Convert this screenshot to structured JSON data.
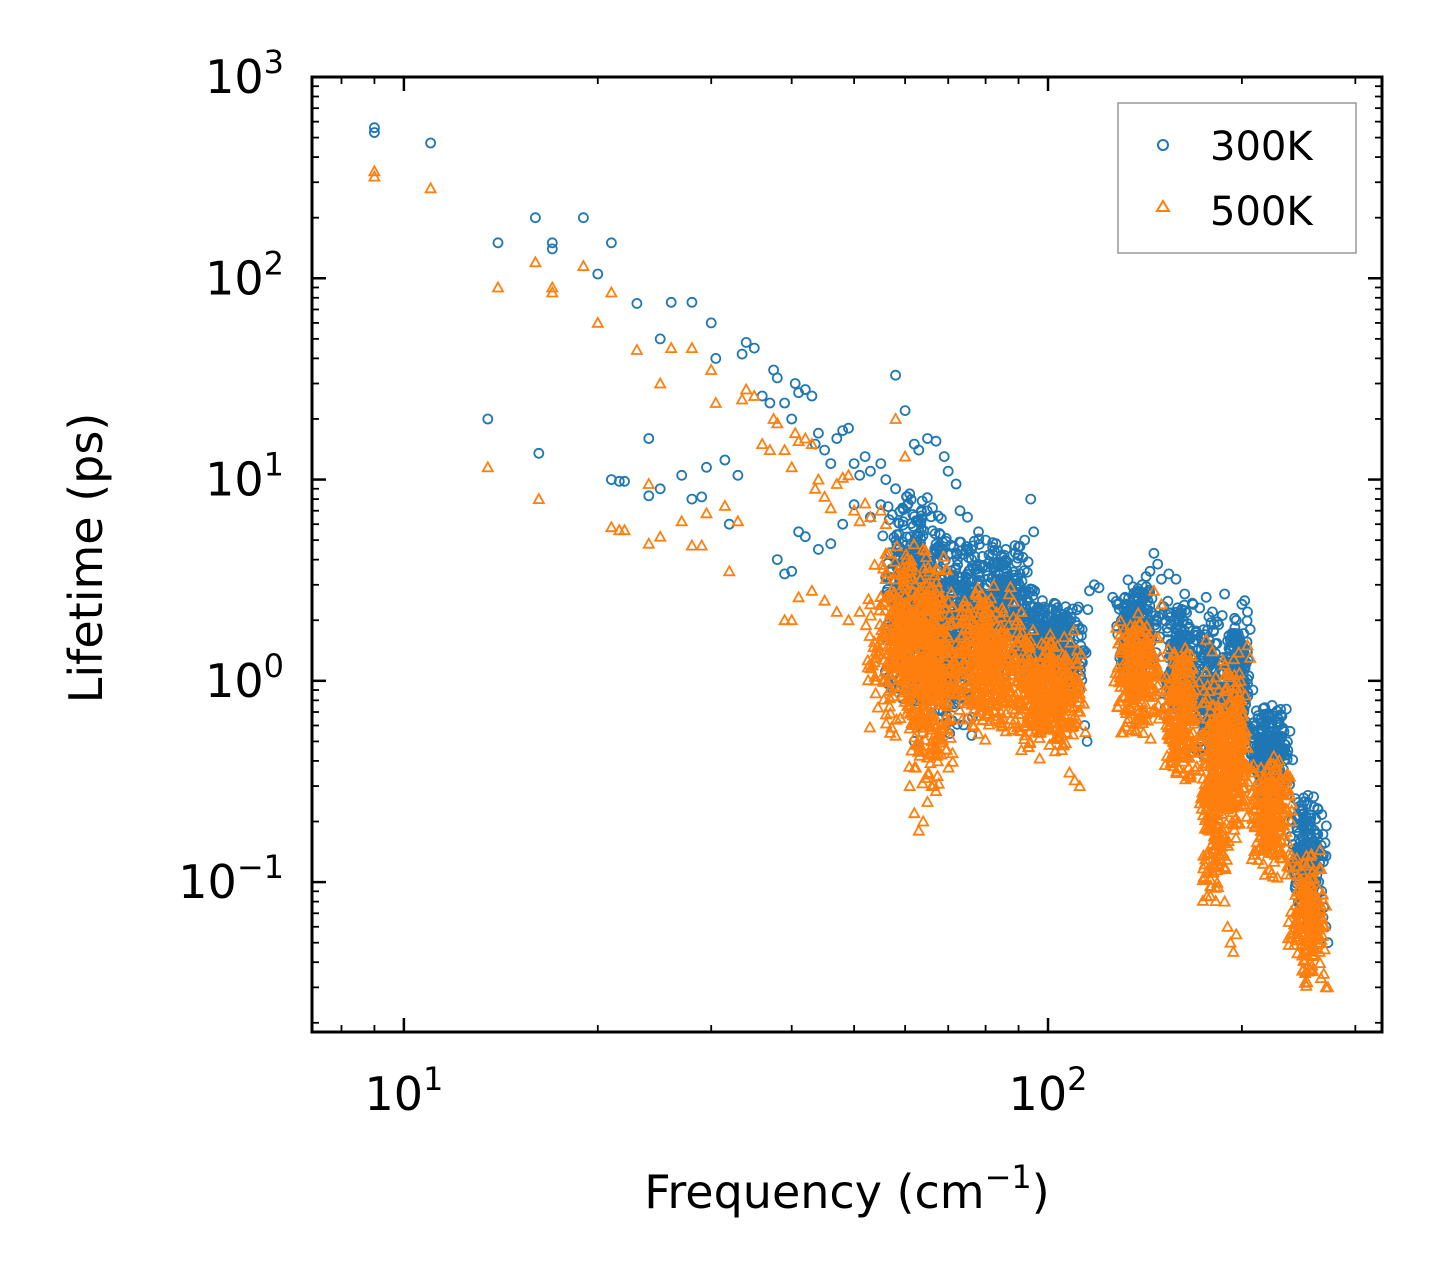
{
  "chart_data": {
    "type": "scatter",
    "title": "",
    "xlabel": "Frequency (cm",
    "xlabel_sup": "−1",
    "xlabel_suffix": ")",
    "ylabel": "Lifetime (ps)",
    "xscale": "log",
    "yscale": "log",
    "xlim": [
      7.2,
      330
    ],
    "ylim": [
      0.018,
      1000
    ],
    "x_ticks": [
      {
        "value": 10,
        "base": "10",
        "exp": "1"
      },
      {
        "value": 100,
        "base": "10",
        "exp": "2"
      }
    ],
    "y_ticks": [
      {
        "value": 0.1,
        "base": "10",
        "exp": "−1"
      },
      {
        "value": 1,
        "base": "10",
        "exp": "0"
      },
      {
        "value": 10,
        "base": "10",
        "exp": "1"
      },
      {
        "value": 100,
        "base": "10",
        "exp": "2"
      },
      {
        "value": 1000,
        "base": "10",
        "exp": "3"
      }
    ],
    "legend": {
      "position": "top-right"
    },
    "series": [
      {
        "name": "300K",
        "marker": "circle",
        "color": "#1f77b4",
        "points": [
          [
            9.0,
            560
          ],
          [
            9.0,
            530
          ],
          [
            11.0,
            470
          ],
          [
            14.0,
            150
          ],
          [
            16.0,
            200
          ],
          [
            17.0,
            150
          ],
          [
            17.0,
            140
          ],
          [
            19.0,
            200
          ],
          [
            20.0,
            105
          ],
          [
            21.0,
            150
          ],
          [
            23.0,
            75
          ],
          [
            25.0,
            50
          ],
          [
            26.0,
            76
          ],
          [
            28.0,
            76
          ],
          [
            13.5,
            20
          ],
          [
            16.2,
            13.5
          ],
          [
            21.0,
            10
          ],
          [
            21.6,
            9.8
          ],
          [
            22.0,
            9.8
          ],
          [
            24.0,
            8.3
          ],
          [
            25.0,
            9.0
          ],
          [
            24.0,
            16
          ],
          [
            27.0,
            10.5
          ],
          [
            28.0,
            8.0
          ],
          [
            29.0,
            8.2
          ],
          [
            29.5,
            11.5
          ],
          [
            30.0,
            60
          ],
          [
            30.5,
            40
          ],
          [
            31.5,
            12.5
          ],
          [
            32.0,
            6.0
          ],
          [
            33.0,
            10.5
          ],
          [
            33.5,
            42
          ],
          [
            34.0,
            48
          ],
          [
            35.0,
            45
          ],
          [
            36.0,
            26
          ],
          [
            37.0,
            24
          ],
          [
            37.5,
            35
          ],
          [
            38.0,
            32
          ],
          [
            39.0,
            24
          ],
          [
            40.0,
            20
          ],
          [
            40.5,
            30
          ],
          [
            41.0,
            27
          ],
          [
            42.0,
            28
          ],
          [
            43.0,
            26
          ],
          [
            43.5,
            15
          ],
          [
            44.0,
            17
          ],
          [
            45.0,
            14
          ],
          [
            46.0,
            12
          ],
          [
            47.0,
            16
          ],
          [
            48.0,
            17.5
          ],
          [
            49.0,
            18
          ],
          [
            50.0,
            12
          ],
          [
            51.0,
            10.5
          ],
          [
            52.0,
            13
          ],
          [
            53.0,
            11
          ],
          [
            55.0,
            12
          ],
          [
            56.0,
            10
          ],
          [
            58.0,
            33
          ],
          [
            60.0,
            22
          ],
          [
            62.0,
            15
          ],
          [
            63.0,
            14
          ],
          [
            65.0,
            16
          ],
          [
            67.0,
            15.5
          ],
          [
            69.0,
            13
          ],
          [
            70.0,
            11
          ],
          [
            72.0,
            9.5
          ],
          [
            73.0,
            7
          ],
          [
            75.0,
            6.5
          ],
          [
            78.0,
            5.5
          ],
          [
            80.0,
            5
          ],
          [
            83.0,
            4.8
          ],
          [
            86.0,
            4.5
          ],
          [
            90.0,
            4.2
          ],
          [
            92.0,
            5.0
          ],
          [
            94.0,
            8.0
          ],
          [
            95.0,
            5.5
          ],
          [
            38.0,
            4.0
          ],
          [
            39.0,
            3.4
          ],
          [
            40.0,
            3.5
          ],
          [
            41.0,
            5.5
          ],
          [
            42.0,
            5.2
          ],
          [
            44.0,
            4.5
          ],
          [
            46.0,
            4.8
          ],
          [
            48.0,
            6.0
          ],
          [
            50.0,
            7.5
          ],
          [
            53.0,
            6.5
          ],
          [
            55.0,
            7.5
          ],
          [
            58.0,
            9.0
          ],
          [
            61.0,
            8.5
          ],
          [
            62.0,
            0.5
          ],
          [
            63.0,
            0.6
          ],
          [
            64.0,
            0.55
          ],
          [
            66.0,
            0.9
          ],
          [
            68.0,
            1.2
          ],
          [
            98.0,
            2.5
          ],
          [
            100.0,
            2.0
          ],
          [
            102.0,
            1.8
          ],
          [
            104.0,
            1.7
          ],
          [
            106.0,
            1.6
          ],
          [
            108.0,
            2.0
          ],
          [
            110.0,
            1.2
          ],
          [
            112.0,
            0.9
          ],
          [
            114.0,
            0.6
          ],
          [
            115.0,
            0.5
          ],
          [
            116.0,
            2.8
          ],
          [
            118.0,
            3.0
          ],
          [
            120.0,
            2.9
          ],
          [
            126.0,
            2.6
          ],
          [
            128.0,
            2.4
          ],
          [
            132.0,
            2.3
          ],
          [
            134.0,
            2.2
          ],
          [
            138.0,
            2.5
          ],
          [
            140.0,
            3.0
          ],
          [
            142.0,
            3.3
          ],
          [
            144.0,
            3.5
          ],
          [
            146.0,
            4.3
          ],
          [
            148.0,
            3.8
          ],
          [
            150.0,
            3.2
          ],
          [
            154.0,
            3.4
          ],
          [
            158.0,
            3.2
          ],
          [
            163.0,
            2.7
          ],
          [
            168.0,
            2.4
          ],
          [
            172.0,
            2.3
          ],
          [
            176.0,
            2.6
          ],
          [
            180.0,
            2.2
          ],
          [
            184.0,
            1.9
          ],
          [
            188.0,
            2.7
          ],
          [
            192.0,
            1.6
          ],
          [
            196.0,
            1.2
          ],
          [
            200.0,
            2.4
          ],
          [
            202.0,
            2.5
          ],
          [
            204.0,
            2.2
          ],
          [
            206.0,
            1.8
          ],
          [
            208.0,
            0.9
          ],
          [
            210.0,
            0.6
          ],
          [
            214.0,
            0.55
          ],
          [
            220.0,
            0.45
          ],
          [
            228.0,
            0.38
          ],
          [
            236.0,
            0.32
          ],
          [
            242.0,
            0.26
          ],
          [
            246.0,
            0.23
          ],
          [
            250.0,
            0.2
          ],
          [
            254.0,
            0.19
          ],
          [
            258.0,
            0.16
          ],
          [
            262.0,
            0.12
          ],
          [
            266.0,
            0.09
          ],
          [
            268.0,
            0.075
          ],
          [
            270.0,
            0.06
          ],
          [
            272.0,
            0.05
          ]
        ],
        "clusters": [
          {
            "x": [
              55,
              70
            ],
            "y": [
              0.7,
              9.5
            ],
            "n": 420
          },
          {
            "x": [
              62,
              78
            ],
            "y": [
              0.45,
              6.0
            ],
            "n": 320
          },
          {
            "x": [
              70,
              98
            ],
            "y": [
              1.0,
              5.5
            ],
            "n": 420
          },
          {
            "x": [
              88,
              116
            ],
            "y": [
              0.9,
              2.6
            ],
            "n": 380
          },
          {
            "x": [
              126,
              150
            ],
            "y": [
              0.9,
              3.4
            ],
            "n": 240
          },
          {
            "x": [
              150,
              170
            ],
            "y": [
              0.55,
              2.7
            ],
            "n": 220
          },
          {
            "x": [
              168,
              190
            ],
            "y": [
              0.35,
              2.2
            ],
            "n": 220
          },
          {
            "x": [
              188,
              206
            ],
            "y": [
              0.45,
              2.3
            ],
            "n": 220
          },
          {
            "x": [
              205,
              240
            ],
            "y": [
              0.25,
              0.8
            ],
            "n": 260
          },
          {
            "x": [
              235,
              272
            ],
            "y": [
              0.06,
              0.3
            ],
            "n": 200
          }
        ]
      },
      {
        "name": "500K",
        "marker": "triangle",
        "color": "#ff7f0e",
        "points": [
          [
            9.0,
            340
          ],
          [
            9.0,
            320
          ],
          [
            11.0,
            280
          ],
          [
            14.0,
            90
          ],
          [
            16.0,
            120
          ],
          [
            17.0,
            90
          ],
          [
            17.0,
            85
          ],
          [
            19.0,
            115
          ],
          [
            20.0,
            60
          ],
          [
            21.0,
            85
          ],
          [
            23.0,
            44
          ],
          [
            25.0,
            30
          ],
          [
            26.0,
            45
          ],
          [
            28.0,
            45
          ],
          [
            13.5,
            11.5
          ],
          [
            16.2,
            8.0
          ],
          [
            21.0,
            5.8
          ],
          [
            21.6,
            5.6
          ],
          [
            22.0,
            5.6
          ],
          [
            24.0,
            4.8
          ],
          [
            25.0,
            5.2
          ],
          [
            24.0,
            9.5
          ],
          [
            27.0,
            6.2
          ],
          [
            28.0,
            4.7
          ],
          [
            29.0,
            4.7
          ],
          [
            29.5,
            6.8
          ],
          [
            30.0,
            35
          ],
          [
            30.5,
            24
          ],
          [
            31.5,
            7.4
          ],
          [
            32.0,
            3.5
          ],
          [
            33.0,
            6.2
          ],
          [
            33.5,
            25
          ],
          [
            34.0,
            28
          ],
          [
            35.0,
            26
          ],
          [
            36.0,
            15
          ],
          [
            37.0,
            14
          ],
          [
            37.5,
            20
          ],
          [
            38.0,
            19
          ],
          [
            39.0,
            14
          ],
          [
            40.0,
            11.5
          ],
          [
            40.5,
            17
          ],
          [
            41.0,
            15.5
          ],
          [
            42.0,
            16
          ],
          [
            43.0,
            15
          ],
          [
            43.5,
            9
          ],
          [
            44.0,
            10
          ],
          [
            45.0,
            8.2
          ],
          [
            46.0,
            7.2
          ],
          [
            47.0,
            9.5
          ],
          [
            48.0,
            10.2
          ],
          [
            49.0,
            10.5
          ],
          [
            50.0,
            7.0
          ],
          [
            51.0,
            6.2
          ],
          [
            52.0,
            7.6
          ],
          [
            53.0,
            6.5
          ],
          [
            55.0,
            7.0
          ],
          [
            56.0,
            6.0
          ],
          [
            58.0,
            20
          ],
          [
            60.0,
            13
          ],
          [
            39.0,
            2.0
          ],
          [
            40.0,
            2.0
          ],
          [
            41.0,
            2.6
          ],
          [
            43.0,
            2.8
          ],
          [
            45.0,
            2.5
          ],
          [
            47.0,
            2.2
          ],
          [
            49.0,
            2.0
          ],
          [
            51.0,
            2.2
          ],
          [
            53.0,
            2.4
          ],
          [
            61.0,
            0.3
          ],
          [
            62.0,
            0.22
          ],
          [
            63.0,
            0.18
          ],
          [
            64.0,
            0.2
          ],
          [
            65.0,
            0.25
          ],
          [
            66.0,
            0.3
          ],
          [
            108.0,
            0.35
          ],
          [
            110.0,
            0.32
          ],
          [
            112.0,
            0.3
          ],
          [
            146.0,
            2.8
          ],
          [
            150.0,
            2.4
          ],
          [
            176.0,
            1.6
          ],
          [
            180.0,
            1.4
          ],
          [
            184.0,
            0.12
          ],
          [
            186.0,
            0.15
          ],
          [
            188.0,
            0.08
          ],
          [
            190.0,
            0.06
          ],
          [
            192.0,
            0.05
          ],
          [
            194.0,
            0.045
          ],
          [
            196.0,
            0.055
          ],
          [
            204.0,
            1.5
          ],
          [
            206.0,
            1.3
          ],
          [
            250.0,
            0.08
          ],
          [
            258.0,
            0.06
          ],
          [
            264.0,
            0.045
          ],
          [
            268.0,
            0.035
          ],
          [
            270.0,
            0.03
          ],
          [
            272.0,
            0.03
          ]
        ],
        "clusters": [
          {
            "x": [
              52,
              70
            ],
            "y": [
              0.5,
              5.0
            ],
            "n": 420
          },
          {
            "x": [
              60,
              72
            ],
            "y": [
              0.25,
              4.0
            ],
            "n": 300
          },
          {
            "x": [
              68,
              96
            ],
            "y": [
              0.5,
              3.0
            ],
            "n": 480
          },
          {
            "x": [
              88,
              116
            ],
            "y": [
              0.4,
              1.8
            ],
            "n": 380
          },
          {
            "x": [
              126,
              150
            ],
            "y": [
              0.5,
              2.2
            ],
            "n": 240
          },
          {
            "x": [
              150,
              172
            ],
            "y": [
              0.3,
              1.6
            ],
            "n": 240
          },
          {
            "x": [
              170,
              194
            ],
            "y": [
              0.07,
              1.3
            ],
            "n": 300
          },
          {
            "x": [
              185,
              206
            ],
            "y": [
              0.15,
              1.4
            ],
            "n": 240
          },
          {
            "x": [
              205,
              240
            ],
            "y": [
              0.1,
              0.45
            ],
            "n": 260
          },
          {
            "x": [
              235,
              272
            ],
            "y": [
              0.03,
              0.15
            ],
            "n": 200
          }
        ]
      }
    ]
  }
}
